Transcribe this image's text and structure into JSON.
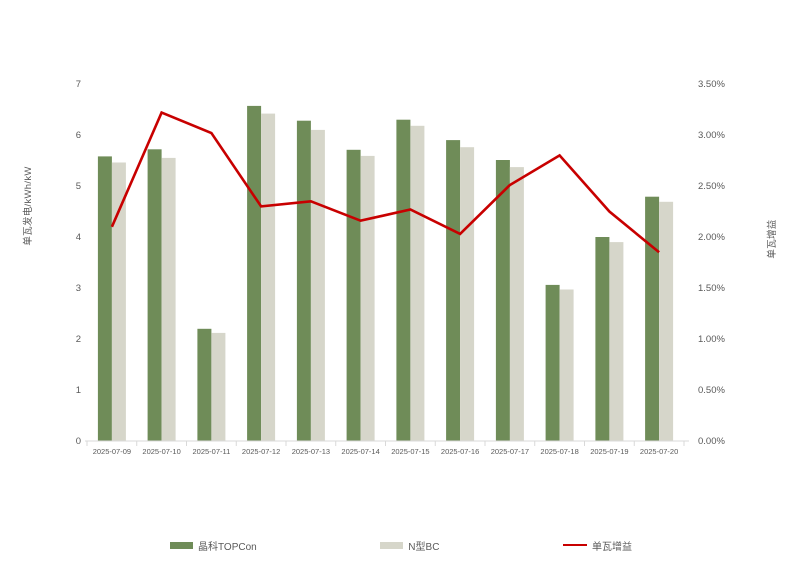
{
  "chart_data": {
    "type": "combo-bar-line",
    "title": "",
    "categories": [
      "2025-07-09",
      "2025-07-10",
      "2025-07-11",
      "2025-07-12",
      "2025-07-13",
      "2025-07-14",
      "2025-07-15",
      "2025-07-16",
      "2025-07-17",
      "2025-07-18",
      "2025-07-19",
      "2025-07-20"
    ],
    "series": [
      {
        "name": "晶科TOPCon",
        "type": "bar",
        "yaxis": "left",
        "color": "#6F8C58",
        "values": [
          5.58,
          5.72,
          2.2,
          6.57,
          6.28,
          5.71,
          6.3,
          5.9,
          5.51,
          3.06,
          4.0,
          4.79
        ]
      },
      {
        "name": "N型BC",
        "type": "bar",
        "yaxis": "left",
        "color": "#D6D6CA",
        "values": [
          5.46,
          5.55,
          2.12,
          6.42,
          6.1,
          5.59,
          6.18,
          5.76,
          5.37,
          2.97,
          3.9,
          4.69
        ]
      },
      {
        "name": "单瓦增益",
        "type": "line",
        "yaxis": "right",
        "color": "#C80000",
        "values": [
          2.1,
          3.22,
          3.02,
          2.3,
          2.35,
          2.16,
          2.27,
          2.03,
          2.51,
          2.8,
          2.25,
          1.85
        ]
      }
    ],
    "left_axis": {
      "title": "单瓦发电/kWh/kW",
      "min": 0,
      "max": 7,
      "ticks": [
        0,
        1,
        2,
        3,
        4,
        5,
        6,
        7
      ]
    },
    "right_axis": {
      "title": "单瓦增益",
      "min": 0,
      "max": 3.5,
      "unit": "%",
      "tick_values": [
        0,
        0.5,
        1,
        1.5,
        2,
        2.5,
        3,
        3.5
      ],
      "tick_labels": [
        "0.00%",
        "0.50%",
        "1.00%",
        "1.50%",
        "2.00%",
        "2.50%",
        "3.00%",
        "3.50%"
      ]
    },
    "legend": {
      "position": "bottom",
      "items": [
        "晶科TOPCon",
        "N型BC",
        "单瓦增益"
      ]
    },
    "grid": false,
    "plot_background": "#FFFFFF",
    "text_color": "#595959",
    "axis_line_color": "#D9D9D9"
  }
}
